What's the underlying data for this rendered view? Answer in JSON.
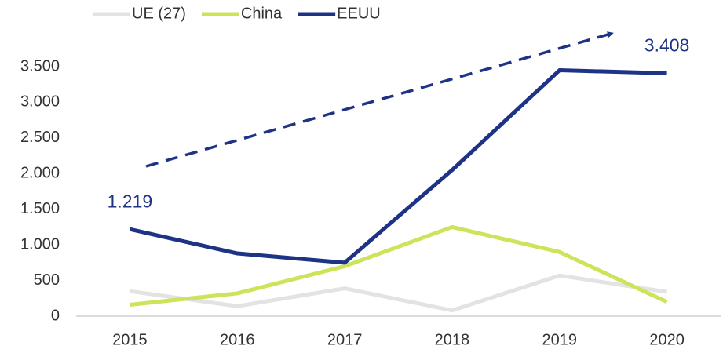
{
  "chart_data": {
    "type": "line",
    "categories": [
      "2015",
      "2016",
      "2017",
      "2018",
      "2019",
      "2020"
    ],
    "series": [
      {
        "name": "UE (27)",
        "color": "#e3e3e3",
        "values": [
          350,
          140,
          390,
          80,
          570,
          340
        ]
      },
      {
        "name": "China",
        "color": "#cde35a",
        "values": [
          160,
          320,
          700,
          1250,
          900,
          200
        ]
      },
      {
        "name": "EEUU",
        "color": "#1f3386",
        "values": [
          1219,
          880,
          750,
          2050,
          3450,
          3408
        ],
        "value_labels": [
          "1.219",
          null,
          null,
          null,
          null,
          "3.408"
        ]
      }
    ],
    "ylim": [
      0,
      3500
    ],
    "yticks": [
      0,
      500,
      {
        "value": 1000,
        "label": "1.000"
      },
      {
        "value": 1500,
        "label": "1.500"
      },
      {
        "value": 2000,
        "label": "2.000"
      },
      {
        "value": 2500,
        "label": "2.500"
      },
      {
        "value": 3000,
        "label": "3.000"
      },
      {
        "value": 3500,
        "label": "3.500"
      }
    ],
    "legend": "top",
    "grid": false
  }
}
